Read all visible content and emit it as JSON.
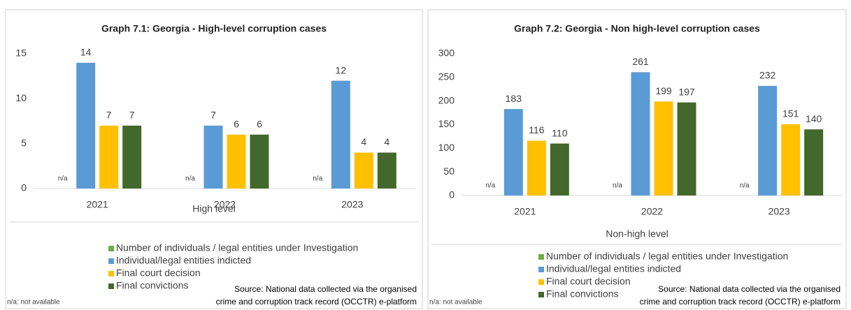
{
  "chart_data": [
    {
      "type": "bar",
      "title": "Graph 7.1: Georgia - High-level corruption cases",
      "categories": [
        "2021",
        "2022",
        "2023"
      ],
      "xlabel": "High level",
      "ylim": [
        0,
        15
      ],
      "yticks": [
        0,
        5,
        10,
        15
      ],
      "series": [
        {
          "name": "Number of individuals / legal entities under Investigation",
          "color": "#70ad47",
          "values": [
            null,
            null,
            null
          ],
          "value_labels": [
            "n/a",
            "n/a",
            "n/a"
          ]
        },
        {
          "name": "Individual/legal entities indicted",
          "color": "#5b9bd5",
          "values": [
            14,
            7,
            12
          ]
        },
        {
          "name": "Final court decision",
          "color": "#ffc000",
          "values": [
            7,
            6,
            4
          ]
        },
        {
          "name": "Final convictions",
          "color": "#43682b",
          "values": [
            7,
            6,
            4
          ]
        }
      ],
      "source": [
        "Source: National data collected via the organised",
        "crime and corruption track record (OCCTR) e-platform"
      ],
      "note": "n/a: not available"
    },
    {
      "type": "bar",
      "title": "Graph 7.2: Georgia - Non high-level corruption cases",
      "categories": [
        "2021",
        "2022",
        "2023"
      ],
      "xlabel": "Non-high level",
      "ylim": [
        0,
        300
      ],
      "yticks": [
        0,
        50,
        100,
        150,
        200,
        250,
        300
      ],
      "series": [
        {
          "name": "Number of individuals / legal entities under Investigation",
          "color": "#70ad47",
          "values": [
            null,
            null,
            null
          ],
          "value_labels": [
            "n/a",
            "n/a",
            "n/a"
          ]
        },
        {
          "name": "Individual/legal entities indicted",
          "color": "#5b9bd5",
          "values": [
            183,
            261,
            232
          ]
        },
        {
          "name": "Final court decision",
          "color": "#ffc000",
          "values": [
            116,
            199,
            151
          ]
        },
        {
          "name": "Final convictions",
          "color": "#43682b",
          "values": [
            110,
            197,
            140
          ]
        }
      ],
      "source": [
        "Source: National data collected via the organised",
        "crime and corruption track record (OCCTR) e-platform"
      ],
      "note": "n/a: not available"
    }
  ]
}
